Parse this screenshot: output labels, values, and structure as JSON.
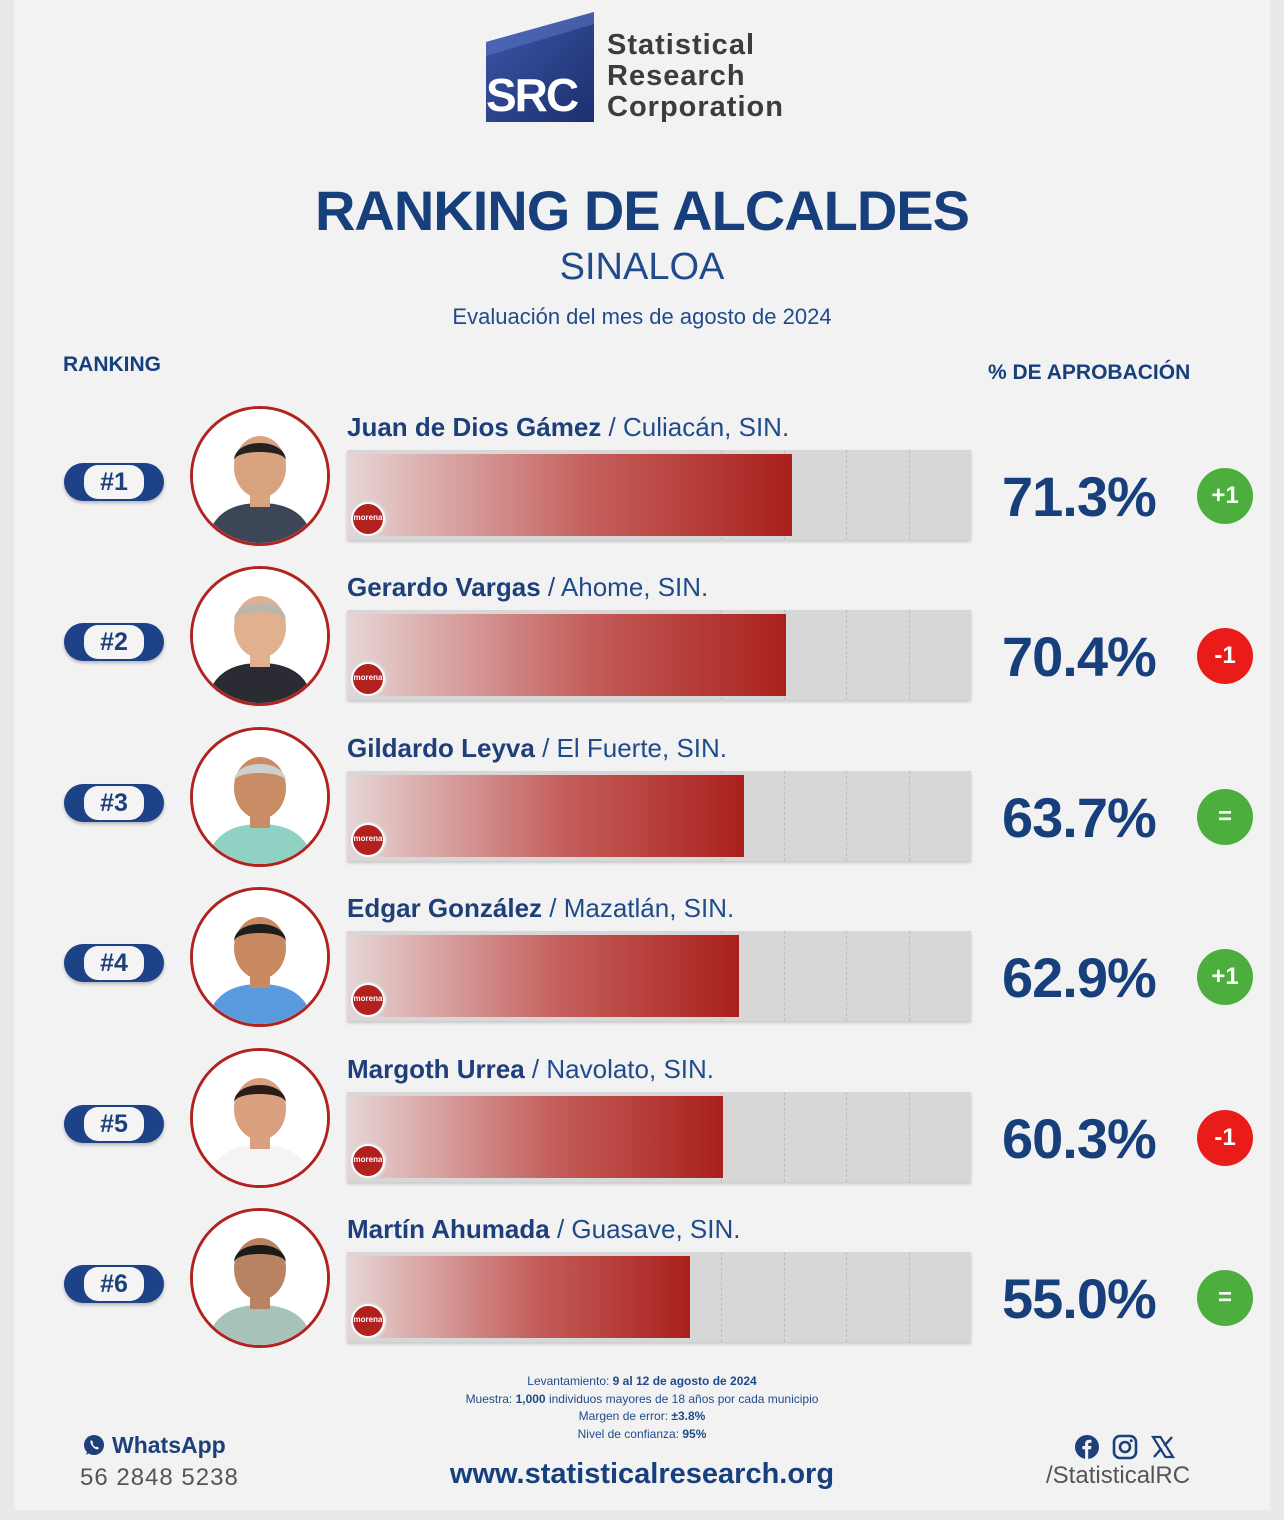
{
  "logo": {
    "mark_text": "SRC",
    "name_lines": [
      "Statistical",
      "Research",
      "Corporation"
    ]
  },
  "title": "RANKING DE ALCALDES",
  "subtitle": "SINALOA",
  "period": "Evaluación del mes de agosto de 2024",
  "columns": {
    "ranking": "RANKING",
    "approval": "% DE APROBACIÓN"
  },
  "colors": {
    "navy": "#173f7c",
    "bar_red": "#a9201c",
    "up_green": "#4caf3d",
    "down_red": "#ea1c1a",
    "same_green": "#4caf3d"
  },
  "rows": [
    {
      "rank": "#1",
      "name": "Juan de Dios Gámez",
      "city": " / Culiacán, SIN.",
      "party": "morena",
      "pct": "71.3%",
      "change": "+1",
      "change_type": "up"
    },
    {
      "rank": "#2",
      "name": "Gerardo Vargas",
      "city": " / Ahome, SIN.",
      "party": "morena",
      "pct": "70.4%",
      "change": "-1",
      "change_type": "down"
    },
    {
      "rank": "#3",
      "name": "Gildardo Leyva",
      "city": " / El Fuerte, SIN.",
      "party": "morena",
      "pct": "63.7%",
      "change": "=",
      "change_type": "same"
    },
    {
      "rank": "#4",
      "name": "Edgar González",
      "city": " / Mazatlán, SIN.",
      "party": "morena",
      "pct": "62.9%",
      "change": "+1",
      "change_type": "up"
    },
    {
      "rank": "#5",
      "name": "Margoth Urrea",
      "city": " / Navolato, SIN.",
      "party": "morena",
      "pct": "60.3%",
      "change": "-1",
      "change_type": "down"
    },
    {
      "rank": "#6",
      "name": "Martín Ahumada",
      "city": " / Guasave, SIN.",
      "party": "morena",
      "pct": "55.0%",
      "change": "=",
      "change_type": "same"
    }
  ],
  "chart_data": {
    "type": "bar",
    "orientation": "horizontal",
    "categories": [
      "Juan de Dios Gámez",
      "Gerardo Vargas",
      "Gildardo Leyva",
      "Edgar González",
      "Margoth Urrea",
      "Martín Ahumada"
    ],
    "values": [
      71.3,
      70.4,
      63.7,
      62.9,
      60.3,
      55.0
    ],
    "xlim": [
      0,
      100
    ],
    "grid": true
  },
  "methodology": {
    "l1_label": "Levantamiento: ",
    "l1_value": "9 al 12 de agosto de 2024",
    "l2_label": "Muestra: ",
    "l2_value": "1,000",
    "l2_rest": " individuos mayores de 18 años por cada municipio",
    "l3_label": "Margen de error: ",
    "l3_value": "±3.8%",
    "l4_label": "Nivel de confianza: ",
    "l4_value": "95%"
  },
  "footer": {
    "whatsapp_label": "WhatsApp",
    "phone": "56 2848 5238",
    "url": "www.statisticalresearch.org",
    "handle": "/StatisticalRC",
    "social_icons": [
      "facebook-icon",
      "instagram-icon",
      "x-icon"
    ]
  }
}
